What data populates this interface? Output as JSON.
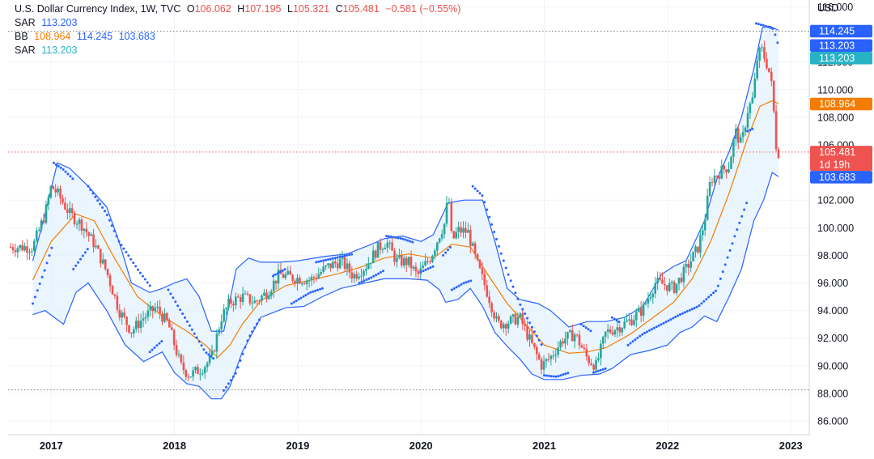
{
  "legend": {
    "title": "U.S. Dollar Currency Index, 1W, TVC",
    "o_label": "O",
    "o_value": "106.062",
    "h_label": "H",
    "h_value": "107.195",
    "l_label": "L",
    "l_value": "105.321",
    "c_label": "C",
    "c_value": "105.481",
    "change": "−0.581 (−0.55%)",
    "sar1_label": "SAR",
    "sar1_value": "113.203",
    "bb_label": "BB",
    "bb_basis": "108.964",
    "bb_upper": "114.245",
    "bb_lower": "103.683",
    "sar2_label": "SAR",
    "sar2_value": "113.203"
  },
  "colors": {
    "up": "#26a69a",
    "down": "#ef5350",
    "bb_basis": "#f57c00",
    "bb_band": "#2962ff",
    "bb_fill": "#e3f2fd",
    "sar": "#2962ff",
    "badge_blue": "#2962ff",
    "badge_teal": "#26b3c6",
    "badge_orange": "#f57c00",
    "badge_red": "#ef5350"
  },
  "chart_data": {
    "type": "candlestick",
    "unit": "USD",
    "ylim": [
      85,
      116.5
    ],
    "y_ticks": [
      "116.000",
      "112.000",
      "110.000",
      "108.000",
      "106.000",
      "102.000",
      "100.000",
      "98.000",
      "96.000",
      "94.000",
      "92.000",
      "90.000",
      "88.000",
      "86.000"
    ],
    "x_ticks": [
      "2017",
      "2018",
      "2019",
      "2020",
      "2021",
      "2022",
      "2023"
    ],
    "anchors": [
      [
        2016.85,
        98.6
      ],
      [
        2016.95,
        101.0
      ],
      [
        2017.0,
        103.0
      ],
      [
        2017.05,
        102.5
      ],
      [
        2017.15,
        101.0
      ],
      [
        2017.25,
        100.2
      ],
      [
        2017.35,
        98.8
      ],
      [
        2017.45,
        96.8
      ],
      [
        2017.55,
        94.0
      ],
      [
        2017.65,
        92.5
      ],
      [
        2017.75,
        93.5
      ],
      [
        2017.85,
        94.2
      ],
      [
        2017.95,
        93.0
      ],
      [
        2018.05,
        90.0
      ],
      [
        2018.12,
        89.3
      ],
      [
        2018.22,
        89.8
      ],
      [
        2018.3,
        90.5
      ],
      [
        2018.38,
        93.5
      ],
      [
        2018.45,
        94.6
      ],
      [
        2018.55,
        95.0
      ],
      [
        2018.65,
        94.6
      ],
      [
        2018.75,
        95.3
      ],
      [
        2018.85,
        96.6
      ],
      [
        2018.95,
        96.4
      ],
      [
        2019.1,
        96.2
      ],
      [
        2019.25,
        97.2
      ],
      [
        2019.35,
        97.6
      ],
      [
        2019.45,
        96.5
      ],
      [
        2019.55,
        97.2
      ],
      [
        2019.65,
        98.5
      ],
      [
        2019.72,
        99.0
      ],
      [
        2019.8,
        97.6
      ],
      [
        2019.9,
        97.5
      ],
      [
        2019.97,
        96.5
      ],
      [
        2020.08,
        97.9
      ],
      [
        2020.15,
        99.5
      ],
      [
        2020.2,
        100.5
      ],
      [
        2020.22,
        102.8
      ],
      [
        2020.25,
        99.0
      ],
      [
        2020.3,
        99.8
      ],
      [
        2020.38,
        99.7
      ],
      [
        2020.45,
        97.5
      ],
      [
        2020.55,
        95.0
      ],
      [
        2020.62,
        93.0
      ],
      [
        2020.72,
        93.2
      ],
      [
        2020.8,
        93.5
      ],
      [
        2020.9,
        91.5
      ],
      [
        2020.98,
        90.0
      ],
      [
        2021.05,
        90.6
      ],
      [
        2021.15,
        91.9
      ],
      [
        2021.25,
        92.3
      ],
      [
        2021.35,
        90.5
      ],
      [
        2021.42,
        90.0
      ],
      [
        2021.5,
        92.4
      ],
      [
        2021.6,
        92.8
      ],
      [
        2021.7,
        93.3
      ],
      [
        2021.8,
        94.1
      ],
      [
        2021.9,
        96.0
      ],
      [
        2021.97,
        95.9
      ],
      [
        2022.05,
        95.6
      ],
      [
        2022.15,
        97.0
      ],
      [
        2022.25,
        98.6
      ],
      [
        2022.3,
        100.5
      ],
      [
        2022.35,
        103.5
      ],
      [
        2022.45,
        104.2
      ],
      [
        2022.5,
        104.5
      ],
      [
        2022.55,
        107.0
      ],
      [
        2022.6,
        106.0
      ],
      [
        2022.65,
        108.5
      ],
      [
        2022.7,
        109.5
      ],
      [
        2022.72,
        112.0
      ],
      [
        2022.76,
        113.0
      ],
      [
        2022.82,
        111.5
      ],
      [
        2022.85,
        110.0
      ],
      [
        2022.88,
        106.0
      ],
      [
        2022.9,
        105.5
      ]
    ],
    "basis": [
      [
        2016.85,
        96.2
      ],
      [
        2017.0,
        99.0
      ],
      [
        2017.2,
        101.0
      ],
      [
        2017.35,
        100.5
      ],
      [
        2017.5,
        98.0
      ],
      [
        2017.7,
        95.0
      ],
      [
        2017.9,
        93.6
      ],
      [
        2018.1,
        92.5
      ],
      [
        2018.25,
        91.5
      ],
      [
        2018.35,
        90.6
      ],
      [
        2018.45,
        91.5
      ],
      [
        2018.55,
        93.0
      ],
      [
        2018.7,
        94.7
      ],
      [
        2018.9,
        95.8
      ],
      [
        2019.1,
        96.2
      ],
      [
        2019.3,
        96.6
      ],
      [
        2019.5,
        97.1
      ],
      [
        2019.7,
        97.8
      ],
      [
        2019.9,
        98.1
      ],
      [
        2020.1,
        97.8
      ],
      [
        2020.25,
        98.8
      ],
      [
        2020.4,
        98.6
      ],
      [
        2020.55,
        96.5
      ],
      [
        2020.7,
        94.5
      ],
      [
        2020.85,
        93.0
      ],
      [
        2021.0,
        91.5
      ],
      [
        2021.2,
        90.9
      ],
      [
        2021.35,
        91.0
      ],
      [
        2021.5,
        91.3
      ],
      [
        2021.7,
        92.3
      ],
      [
        2021.9,
        93.6
      ],
      [
        2022.05,
        94.6
      ],
      [
        2022.2,
        96.3
      ],
      [
        2022.35,
        99.0
      ],
      [
        2022.5,
        102.5
      ],
      [
        2022.65,
        106.5
      ],
      [
        2022.75,
        108.8
      ],
      [
        2022.85,
        109.2
      ],
      [
        2022.9,
        109.0
      ]
    ],
    "upper": [
      [
        2016.85,
        97.6
      ],
      [
        2016.95,
        101.0
      ],
      [
        2017.05,
        104.7
      ],
      [
        2017.15,
        104.3
      ],
      [
        2017.3,
        103.0
      ],
      [
        2017.45,
        101.5
      ],
      [
        2017.55,
        99.0
      ],
      [
        2017.65,
        96.0
      ],
      [
        2017.8,
        95.3
      ],
      [
        2017.9,
        95.6
      ],
      [
        2018.0,
        96.0
      ],
      [
        2018.1,
        96.3
      ],
      [
        2018.2,
        95.0
      ],
      [
        2018.3,
        92.5
      ],
      [
        2018.4,
        92.5
      ],
      [
        2018.5,
        97.0
      ],
      [
        2018.6,
        97.8
      ],
      [
        2018.7,
        97.5
      ],
      [
        2018.85,
        97.5
      ],
      [
        2019.0,
        97.6
      ],
      [
        2019.2,
        97.9
      ],
      [
        2019.4,
        98.1
      ],
      [
        2019.6,
        98.8
      ],
      [
        2019.7,
        99.2
      ],
      [
        2019.85,
        99.4
      ],
      [
        2020.0,
        99.0
      ],
      [
        2020.1,
        99.5
      ],
      [
        2020.22,
        101.8
      ],
      [
        2020.35,
        102.0
      ],
      [
        2020.5,
        102.0
      ],
      [
        2020.6,
        99.0
      ],
      [
        2020.7,
        95.6
      ],
      [
        2020.8,
        94.8
      ],
      [
        2020.95,
        94.5
      ],
      [
        2021.05,
        94.0
      ],
      [
        2021.2,
        92.8
      ],
      [
        2021.35,
        93.2
      ],
      [
        2021.5,
        93.2
      ],
      [
        2021.65,
        93.5
      ],
      [
        2021.8,
        94.3
      ],
      [
        2021.95,
        96.6
      ],
      [
        2022.05,
        97.2
      ],
      [
        2022.15,
        97.6
      ],
      [
        2022.3,
        100.5
      ],
      [
        2022.4,
        103.5
      ],
      [
        2022.5,
        105.5
      ],
      [
        2022.6,
        108.0
      ],
      [
        2022.7,
        111.5
      ],
      [
        2022.77,
        114.5
      ],
      [
        2022.83,
        114.6
      ],
      [
        2022.9,
        114.3
      ]
    ],
    "lower": [
      [
        2016.85,
        93.7
      ],
      [
        2016.95,
        94.0
      ],
      [
        2017.1,
        93.0
      ],
      [
        2017.2,
        95.3
      ],
      [
        2017.3,
        96.0
      ],
      [
        2017.45,
        94.0
      ],
      [
        2017.6,
        91.5
      ],
      [
        2017.75,
        90.3
      ],
      [
        2017.9,
        91.0
      ],
      [
        2018.0,
        89.5
      ],
      [
        2018.1,
        88.7
      ],
      [
        2018.2,
        88.5
      ],
      [
        2018.3,
        87.6
      ],
      [
        2018.38,
        87.6
      ],
      [
        2018.45,
        88.5
      ],
      [
        2018.55,
        91.0
      ],
      [
        2018.7,
        93.5
      ],
      [
        2018.9,
        94.2
      ],
      [
        2019.05,
        94.3
      ],
      [
        2019.2,
        95.0
      ],
      [
        2019.35,
        95.6
      ],
      [
        2019.5,
        95.9
      ],
      [
        2019.7,
        96.3
      ],
      [
        2019.9,
        96.3
      ],
      [
        2020.05,
        96.2
      ],
      [
        2020.15,
        95.5
      ],
      [
        2020.2,
        94.6
      ],
      [
        2020.3,
        94.8
      ],
      [
        2020.4,
        95.6
      ],
      [
        2020.5,
        94.3
      ],
      [
        2020.6,
        92.4
      ],
      [
        2020.7,
        91.4
      ],
      [
        2020.8,
        90.5
      ],
      [
        2020.9,
        89.4
      ],
      [
        2021.0,
        89.0
      ],
      [
        2021.15,
        89.0
      ],
      [
        2021.3,
        89.3
      ],
      [
        2021.45,
        89.4
      ],
      [
        2021.55,
        89.8
      ],
      [
        2021.7,
        90.8
      ],
      [
        2021.85,
        91.1
      ],
      [
        2022.0,
        91.5
      ],
      [
        2022.1,
        92.4
      ],
      [
        2022.2,
        92.8
      ],
      [
        2022.3,
        93.6
      ],
      [
        2022.4,
        93.2
      ],
      [
        2022.5,
        95.0
      ],
      [
        2022.6,
        97.0
      ],
      [
        2022.7,
        100.5
      ],
      [
        2022.78,
        102.0
      ],
      [
        2022.85,
        104.0
      ],
      [
        2022.9,
        103.7
      ]
    ],
    "sar_segments": [
      [
        [
          2016.85,
          94.5
        ],
        [
          2016.95,
          97.0
        ],
        [
          2017.02,
          99.0
        ]
      ],
      [
        [
          2017.02,
          104.7
        ],
        [
          2017.1,
          104.2
        ],
        [
          2017.18,
          103.5
        ]
      ],
      [
        [
          2017.18,
          97.0
        ],
        [
          2017.3,
          98.5
        ]
      ],
      [
        [
          2017.3,
          103.0
        ],
        [
          2017.45,
          101.0
        ],
        [
          2017.55,
          99.0
        ],
        [
          2017.7,
          97.0
        ],
        [
          2017.8,
          95.8
        ]
      ],
      [
        [
          2017.8,
          91.0
        ],
        [
          2017.9,
          91.8
        ]
      ],
      [
        [
          2017.95,
          95.5
        ],
        [
          2018.05,
          94.0
        ],
        [
          2018.15,
          92.5
        ],
        [
          2018.25,
          91.0
        ],
        [
          2018.32,
          90.5
        ]
      ],
      [
        [
          2018.4,
          88.2
        ],
        [
          2018.5,
          89.5
        ],
        [
          2018.6,
          92.0
        ],
        [
          2018.7,
          93.5
        ]
      ],
      [
        [
          2018.8,
          96.5
        ],
        [
          2018.9,
          97.0
        ]
      ],
      [
        [
          2018.95,
          94.5
        ],
        [
          2019.1,
          95.3
        ],
        [
          2019.2,
          95.6
        ]
      ],
      [
        [
          2019.15,
          97.5
        ],
        [
          2019.3,
          97.8
        ],
        [
          2019.45,
          98.1
        ]
      ],
      [
        [
          2019.5,
          96.0
        ],
        [
          2019.6,
          96.4
        ],
        [
          2019.7,
          96.9
        ]
      ],
      [
        [
          2019.72,
          99.4
        ],
        [
          2019.85,
          99.2
        ],
        [
          2019.95,
          98.9
        ]
      ],
      [
        [
          2020.0,
          96.8
        ],
        [
          2020.1,
          97.2
        ]
      ],
      [
        [
          2020.18,
          98.0
        ],
        [
          2020.25,
          98.7
        ]
      ],
      [
        [
          2020.25,
          95.5
        ],
        [
          2020.35,
          96.0
        ],
        [
          2020.42,
          96.2
        ]
      ],
      [
        [
          2020.42,
          103.0
        ],
        [
          2020.5,
          102.3
        ],
        [
          2020.6,
          99.5
        ],
        [
          2020.7,
          96.8
        ],
        [
          2020.8,
          94.5
        ],
        [
          2020.9,
          92.8
        ],
        [
          2020.98,
          91.5
        ]
      ],
      [
        [
          2021.0,
          89.3
        ],
        [
          2021.1,
          89.2
        ],
        [
          2021.2,
          89.5
        ]
      ],
      [
        [
          2021.3,
          93.0
        ],
        [
          2021.38,
          92.5
        ]
      ],
      [
        [
          2021.4,
          89.5
        ],
        [
          2021.5,
          89.8
        ]
      ],
      [
        [
          2021.55,
          93.5
        ],
        [
          2021.62,
          93.1
        ]
      ],
      [
        [
          2021.68,
          91.5
        ],
        [
          2021.8,
          92.3
        ],
        [
          2021.95,
          93.0
        ],
        [
          2022.1,
          93.7
        ],
        [
          2022.25,
          94.3
        ],
        [
          2022.4,
          95.5
        ],
        [
          2022.55,
          99.5
        ],
        [
          2022.65,
          102.0
        ]
      ],
      [
        [
          2022.65,
          107.0
        ],
        [
          2022.7,
          107.2
        ]
      ],
      [
        [
          2022.72,
          114.8
        ],
        [
          2022.8,
          114.6
        ],
        [
          2022.86,
          114.4
        ],
        [
          2022.9,
          113.2
        ]
      ]
    ],
    "price_lines": [
      {
        "value": 114.245,
        "style": "dotted",
        "color": "#787b86"
      },
      {
        "value": 105.481,
        "style": "dotted",
        "color": "#ef5350"
      },
      {
        "value": 88.25,
        "style": "dotted",
        "color": "#787b86"
      }
    ],
    "badges": [
      {
        "value": 114.245,
        "text": "114.245",
        "color": "#2962ff"
      },
      {
        "value": 113.203,
        "text": "113.203",
        "color": "#2962ff"
      },
      {
        "value": 113.203,
        "text": "113.203",
        "color": "#26b3c6"
      },
      {
        "value": 108.964,
        "text": "108.964",
        "color": "#f57c00"
      },
      {
        "value": 105.481,
        "text": "105.481",
        "sub": "1d 19h",
        "color": "#ef5350"
      },
      {
        "value": 103.683,
        "text": "103.683",
        "color": "#2962ff"
      }
    ]
  }
}
